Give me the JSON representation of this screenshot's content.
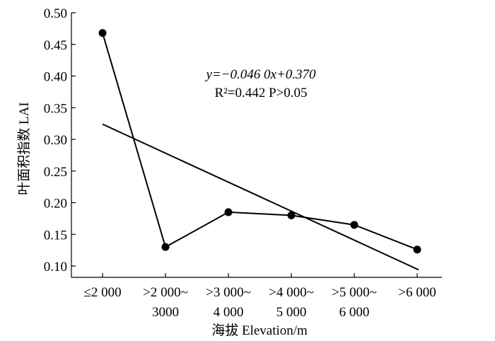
{
  "chart_data": {
    "type": "line",
    "xlabel": "海拔 Elevation/m",
    "ylabel": "叶面积指数 LAI",
    "ylim": [
      0.1,
      0.5
    ],
    "yticks": [
      0.1,
      0.15,
      0.2,
      0.25,
      0.3,
      0.35,
      0.4,
      0.45,
      0.5
    ],
    "ytick_labels": [
      "0.10",
      "0.15",
      "0.20",
      "0.25",
      "0.30",
      "0.35",
      "0.40",
      "0.45",
      "0.50"
    ],
    "categories": [
      [
        "≤2 000",
        ""
      ],
      [
        ">2 000~",
        "3000"
      ],
      [
        ">3 000~",
        "4 000"
      ],
      [
        ">4 000~",
        "5 000"
      ],
      [
        ">5 000~",
        "6 000"
      ],
      [
        ">6 000",
        ""
      ]
    ],
    "series": [
      {
        "values": [
          0.468,
          0.13,
          0.185,
          0.18,
          0.165,
          0.126
        ]
      }
    ],
    "trendline": {
      "slope": -0.046,
      "intercept": 0.37
    },
    "annotations": {
      "equation": "y=−0.046 0x+0.370",
      "stats": "R²=0.442 P>0.05"
    },
    "grid": false,
    "legend": "none"
  }
}
